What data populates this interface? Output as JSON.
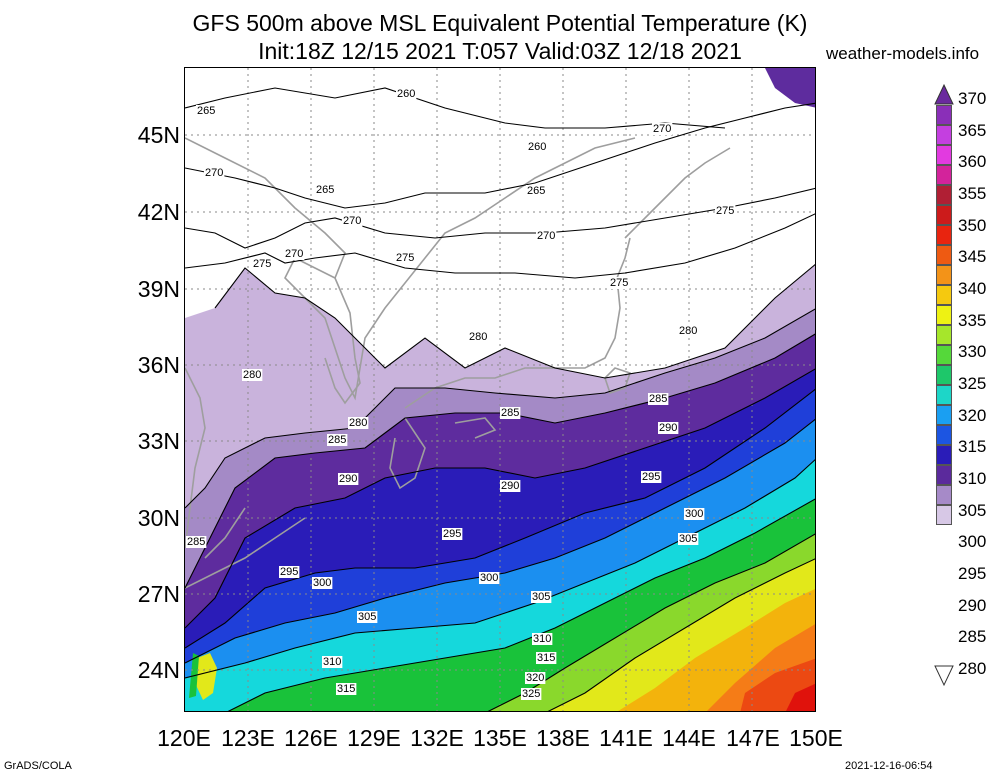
{
  "header": {
    "title_line1": "GFS 500m above MSL Equivalent Potential Temperature (K)",
    "title_line2": "Init:18Z 12/15 2021 T:057 Valid:03Z 12/18 2021",
    "site": "weather-models.info"
  },
  "map": {
    "lat_labels": [
      "45N",
      "42N",
      "39N",
      "36N",
      "33N",
      "30N",
      "27N",
      "24N"
    ],
    "lon_labels": [
      "120E",
      "123E",
      "126E",
      "129E",
      "132E",
      "135E",
      "138E",
      "141E",
      "144E",
      "147E",
      "150E"
    ],
    "contour_labels": [
      "265",
      "260",
      "260",
      "270",
      "270",
      "265",
      "265",
      "270",
      "275",
      "270",
      "270",
      "275",
      "275",
      "275",
      "280",
      "280",
      "280",
      "280",
      "285",
      "285",
      "285",
      "290",
      "290",
      "290",
      "285",
      "295",
      "300",
      "305",
      "295",
      "300",
      "295",
      "300",
      "305",
      "305",
      "310",
      "315",
      "310",
      "320",
      "315",
      "325"
    ],
    "colors": {
      "b280": "#c9b3dc",
      "b285": "#a48ac6",
      "b290": "#5e2c9e",
      "b295": "#2a1cb8",
      "b300": "#1f3fd9",
      "b305": "#1b8ff0",
      "b310": "#15d8dc",
      "b315": "#19c23a",
      "b320": "#8ad82c",
      "b325": "#e2e81a",
      "b330": "#f3b30c",
      "b335": "#f57c17",
      "b340": "#ec4912",
      "b345": "#e0120c",
      "coast": "#9e9e9e"
    }
  },
  "colorbar": {
    "labels": [
      "370",
      "365",
      "360",
      "355",
      "350",
      "345",
      "340",
      "335",
      "330",
      "325",
      "320",
      "315",
      "310",
      "305",
      "300",
      "295",
      "290",
      "285",
      "280"
    ],
    "colors": [
      "#8a2fb8",
      "#c43fe0",
      "#e23ae0",
      "#d3239b",
      "#b01f34",
      "#cc1b1b",
      "#e8240f",
      "#ee5a12",
      "#f39318",
      "#f5c90f",
      "#eef213",
      "#a6e62b",
      "#55d83a",
      "#1ec76a",
      "#1dd6c8",
      "#1a9ff2",
      "#1c55e2",
      "#2a1cb8",
      "#5b2a9c",
      "#a68ac8",
      "#d7c8e6"
    ]
  },
  "footer": {
    "left": "GrADS/COLA",
    "right": "2021-12-16-06:54"
  }
}
